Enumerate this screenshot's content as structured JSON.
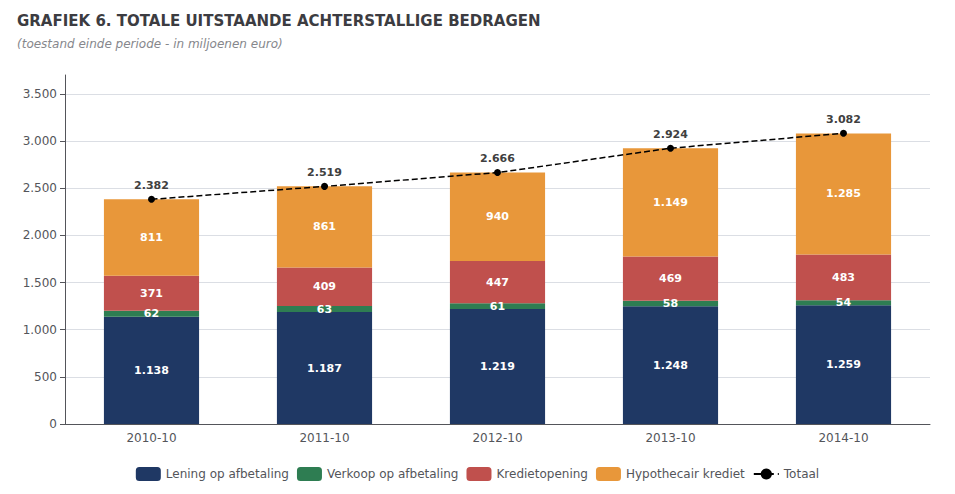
{
  "chart_data": {
    "type": "bar",
    "title": "GRAFIEK 6. TOTALE UITSTAANDE ACHTERSTALLIGE BEDRAGEN",
    "subtitle": "(toestand einde periode - in miljoenen euro)",
    "categories": [
      "2010-10",
      "2011-10",
      "2012-10",
      "2013-10",
      "2014-10"
    ],
    "stacked": true,
    "data_labels": true,
    "grid": true,
    "legend": "bottom",
    "ylim": [
      0,
      3700
    ],
    "yticks": [
      0,
      500,
      {
        "value": 1000,
        "label": "1.000"
      },
      {
        "value": 1500,
        "label": "1.500"
      },
      {
        "value": 2000,
        "label": "2.000"
      },
      {
        "value": 2500,
        "label": "2.500"
      },
      {
        "value": 3000,
        "label": "3.000"
      },
      {
        "value": 3500,
        "label": "3.500"
      }
    ],
    "series": [
      {
        "name": "Lening op afbetaling",
        "type": "bar",
        "color": "#1F3864",
        "values": [
          1138,
          1187,
          1219,
          1248,
          1259
        ],
        "value_labels": [
          "1.138",
          "1.187",
          "1.219",
          "1.248",
          "1.259"
        ]
      },
      {
        "name": "Verkoop op afbetaling",
        "type": "bar",
        "color": "#2E7D52",
        "values": [
          62,
          63,
          61,
          58,
          54
        ]
      },
      {
        "name": "Kredietopening",
        "type": "bar",
        "color": "#C0504D",
        "values": [
          371,
          409,
          447,
          469,
          483
        ]
      },
      {
        "name": "Hypothecair krediet",
        "type": "bar",
        "color": "#E8973A",
        "values": [
          811,
          861,
          940,
          1149,
          1285
        ],
        "value_labels": [
          "811",
          "861",
          "940",
          "1.149",
          "1.285"
        ]
      },
      {
        "name": "Totaal",
        "type": "line",
        "color": "#000000",
        "line_style": "dashed",
        "marker": "circle",
        "values": [
          2382,
          2519,
          2666,
          2924,
          3082
        ],
        "value_labels": [
          "2.382",
          "2.519",
          "2.666",
          "2.924",
          "3.082"
        ]
      }
    ]
  }
}
